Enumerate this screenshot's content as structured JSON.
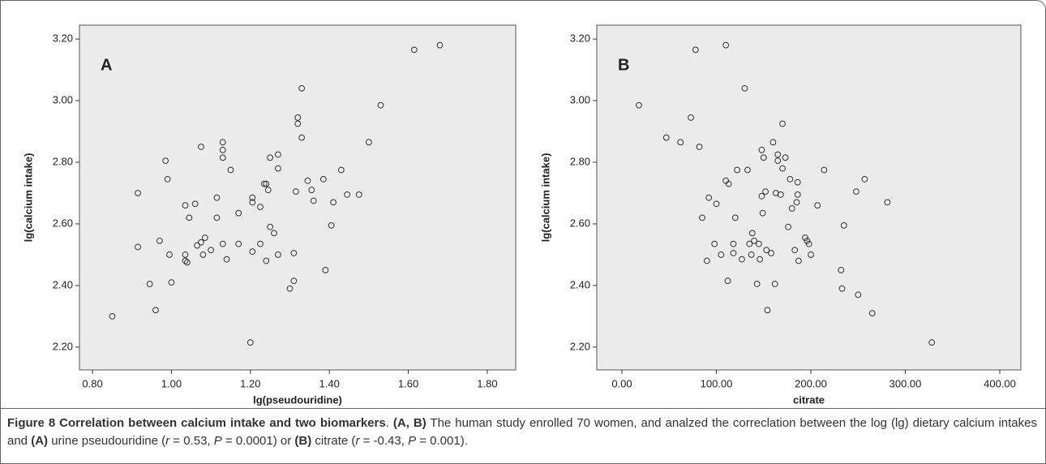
{
  "chart_data": [
    {
      "type": "scatter",
      "annotation": "A",
      "x_label": "lg(pseudouridine)",
      "y_label": "lg(calcium intake)",
      "color": "#333333",
      "background": "#ececec",
      "xlim": [
        0.767,
        1.872
      ],
      "ylim": [
        2.126,
        3.245
      ],
      "xticks": [
        {
          "value": 0.8,
          "label": "0.80"
        },
        {
          "value": 1.0,
          "label": "1.00"
        },
        {
          "value": 1.2,
          "label": "1.20"
        },
        {
          "value": 1.4,
          "label": "1.40"
        },
        {
          "value": 1.6,
          "label": "1.60"
        },
        {
          "value": 1.8,
          "label": "1.80"
        }
      ],
      "yticks": [
        {
          "value": 2.2,
          "label": "2.20"
        },
        {
          "value": 2.4,
          "label": "2.40"
        },
        {
          "value": 2.6,
          "label": "2.60"
        },
        {
          "value": 2.8,
          "label": "2.80"
        },
        {
          "value": 3.0,
          "label": "3.00"
        },
        {
          "value": 3.2,
          "label": "3.20"
        }
      ],
      "x": [
        0.85,
        0.915,
        0.915,
        0.945,
        0.96,
        0.97,
        0.985,
        0.99,
        0.995,
        1.0,
        1.035,
        1.035,
        1.035,
        1.04,
        1.045,
        1.06,
        1.065,
        1.075,
        1.075,
        1.08,
        1.085,
        1.1,
        1.115,
        1.115,
        1.13,
        1.13,
        1.13,
        1.13,
        1.14,
        1.15,
        1.17,
        1.17,
        1.2,
        1.205,
        1.205,
        1.205,
        1.225,
        1.225,
        1.235,
        1.24,
        1.24,
        1.245,
        1.25,
        1.25,
        1.26,
        1.27,
        1.27,
        1.27,
        1.3,
        1.31,
        1.31,
        1.315,
        1.32,
        1.32,
        1.33,
        1.33,
        1.345,
        1.355,
        1.36,
        1.385,
        1.39,
        1.405,
        1.41,
        1.43,
        1.445,
        1.475,
        1.5,
        1.53,
        1.615,
        1.68
      ],
      "values": [
        2.3,
        2.7,
        2.525,
        2.405,
        2.32,
        2.545,
        2.805,
        2.745,
        2.5,
        2.41,
        2.66,
        2.5,
        2.48,
        2.475,
        2.62,
        2.665,
        2.53,
        2.85,
        2.54,
        2.5,
        2.555,
        2.515,
        2.685,
        2.62,
        2.865,
        2.84,
        2.815,
        2.535,
        2.485,
        2.775,
        2.635,
        2.535,
        2.215,
        2.685,
        2.67,
        2.51,
        2.535,
        2.655,
        2.73,
        2.73,
        2.48,
        2.71,
        2.815,
        2.59,
        2.57,
        2.825,
        2.78,
        2.5,
        2.39,
        2.415,
        2.505,
        2.705,
        2.945,
        2.925,
        3.04,
        2.88,
        2.74,
        2.71,
        2.675,
        2.745,
        2.45,
        2.595,
        2.67,
        2.775,
        2.695,
        2.695,
        2.865,
        2.985,
        3.165,
        3.18
      ]
    },
    {
      "type": "scatter",
      "annotation": "B",
      "x_label": "citrate",
      "y_label": "lg(calcium intake)",
      "color": "#333333",
      "background": "#ececec",
      "xlim": [
        -26.6,
        422.3
      ],
      "ylim": [
        2.126,
        3.245
      ],
      "xticks": [
        {
          "value": 0,
          "label": "0.00"
        },
        {
          "value": 100,
          "label": "100.00"
        },
        {
          "value": 200,
          "label": "200.00"
        },
        {
          "value": 300,
          "label": "300.00"
        },
        {
          "value": 400,
          "label": "400.00"
        }
      ],
      "yticks": [
        {
          "value": 2.2,
          "label": "2.20"
        },
        {
          "value": 2.4,
          "label": "2.40"
        },
        {
          "value": 2.6,
          "label": "2.60"
        },
        {
          "value": 2.8,
          "label": "2.80"
        },
        {
          "value": 3.0,
          "label": "3.00"
        },
        {
          "value": 3.2,
          "label": "3.20"
        }
      ],
      "x": [
        18,
        47,
        62,
        73,
        78,
        82,
        85,
        90,
        92,
        98,
        100,
        105,
        110,
        110,
        112,
        113,
        118,
        118,
        120,
        122,
        127,
        130,
        133,
        135,
        137,
        138,
        140,
        143,
        145,
        146,
        148,
        148,
        149,
        150,
        152,
        153,
        154,
        158,
        160,
        162,
        163,
        165,
        165,
        168,
        170,
        170,
        173,
        176,
        178,
        180,
        183,
        185,
        186,
        186,
        187,
        194,
        196,
        198,
        200,
        207,
        214,
        232,
        233,
        235,
        248,
        250,
        257,
        265,
        281,
        328
      ],
      "values": [
        2.985,
        2.88,
        2.865,
        2.945,
        3.165,
        2.85,
        2.62,
        2.48,
        2.685,
        2.535,
        2.665,
        2.5,
        3.18,
        2.74,
        2.415,
        2.73,
        2.535,
        2.505,
        2.62,
        2.775,
        2.485,
        3.04,
        2.775,
        2.535,
        2.5,
        2.57,
        2.545,
        2.405,
        2.535,
        2.485,
        2.69,
        2.84,
        2.635,
        2.815,
        2.705,
        2.515,
        2.32,
        2.505,
        2.865,
        2.405,
        2.7,
        2.805,
        2.825,
        2.695,
        2.925,
        2.78,
        2.815,
        2.59,
        2.745,
        2.65,
        2.515,
        2.67,
        2.695,
        2.735,
        2.48,
        2.555,
        2.545,
        2.535,
        2.5,
        2.66,
        2.775,
        2.45,
        2.39,
        2.595,
        2.705,
        2.37,
        2.745,
        2.31,
        2.67,
        2.215
      ]
    }
  ],
  "caption": [
    "Figure 8 Correlation between calcium intake and two biomarkers",
    ". ",
    "(A, B)",
    " The human study enrolled 70 women, and analzed the correclation between the log (lg) dietary calcium intakes and ",
    "(A)",
    " urine pseudouridine (",
    "r",
    " = 0.53, ",
    "P",
    " = 0.0001) or ",
    "(B)",
    " citrate (",
    "r",
    " = -0.43, ",
    "P",
    " = 0.001)."
  ]
}
